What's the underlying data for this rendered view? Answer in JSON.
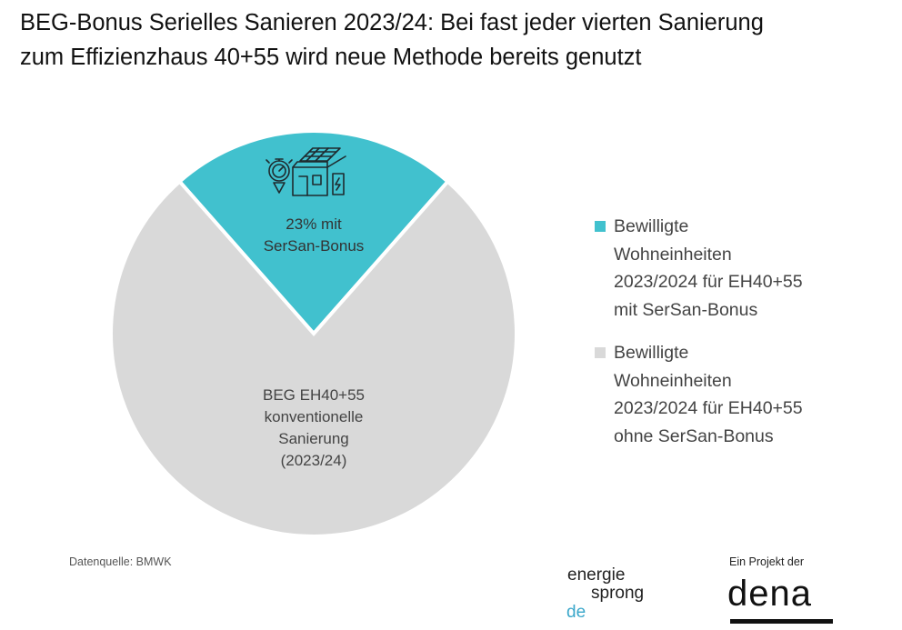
{
  "title": {
    "line1": "BEG-Bonus Serielles Sanieren 2023/24: Bei fast jeder vierten Sanierung",
    "line2": "zum Effizienzhaus 40+55 wird neue Methode bereits genutzt"
  },
  "chart_data": {
    "type": "pie",
    "slices": [
      {
        "value": 23,
        "label_lines": [
          "23% mit",
          "SerSan-Bonus"
        ],
        "legend": "Bewilligte\nWohneinheiten\n2023/2024 für EH40+55\nmit SerSan-Bonus",
        "color": "#41c1ce",
        "icon": "serial-renovation-icon"
      },
      {
        "value": 77,
        "label_lines": [
          "BEG EH40+55",
          "konventionelle",
          "Sanierung",
          "(2023/24)"
        ],
        "legend": "Bewilligte\nWohneinheiten\n2023/2024 für EH40+55\nohne SerSan-Bonus",
        "color": "#d9d9d9"
      }
    ],
    "legend_position": "right",
    "slice_border_color": "#ffffff"
  },
  "footer": {
    "source": "Datenquelle: BMWK",
    "logo_energiesprong": [
      "energie",
      "sprong",
      "de"
    ],
    "project_label": "Ein Projekt der",
    "logo_dena": "dena"
  }
}
